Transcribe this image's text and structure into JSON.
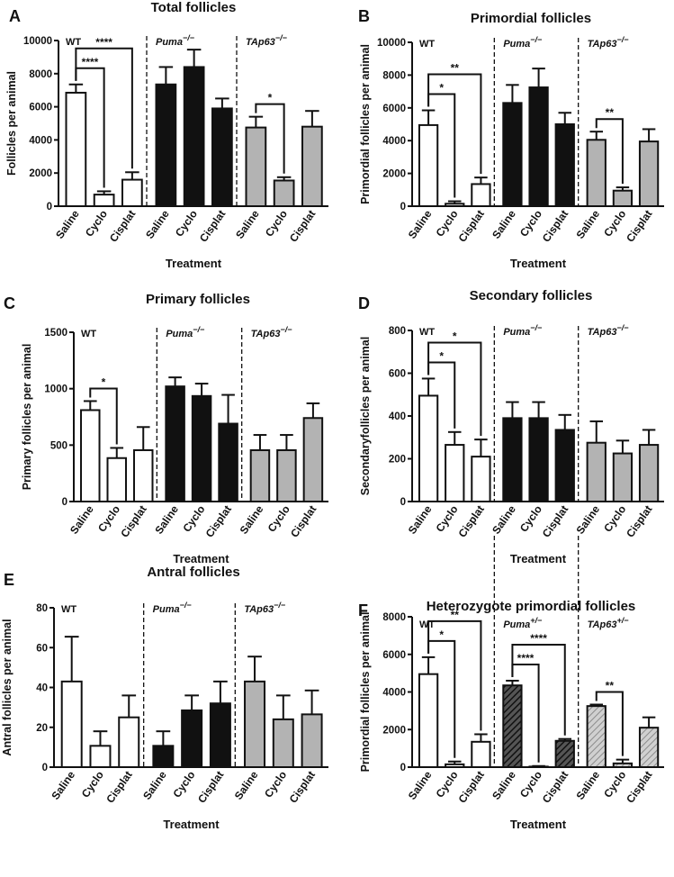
{
  "colors": {
    "white_fill": "#ffffff",
    "black_fill": "#111111",
    "grey_fill": "#b3b3b3",
    "hatch_fill": "hatched"
  },
  "chart_data": [
    {
      "panel": "A",
      "type": "bar",
      "title": "Total follicles",
      "xlabel": "Treatment",
      "ylabel": "Follicles per animal",
      "ylim": [
        0,
        10000
      ],
      "yticks": [
        "0",
        "2000",
        "4000",
        "6000",
        "8000",
        "10000"
      ],
      "groups": [
        {
          "genotype": "WT",
          "sup": "",
          "italic": false,
          "style": "white",
          "categories": [
            "Saline",
            "Cyclo",
            "Cisplat"
          ],
          "values": [
            6850,
            700,
            1600
          ],
          "errors": [
            500,
            200,
            450
          ]
        },
        {
          "genotype": "Puma",
          "sup": "−/−",
          "italic": true,
          "style": "black",
          "categories": [
            "Saline",
            "Cyclo",
            "Cisplat"
          ],
          "values": [
            7350,
            8400,
            5900
          ],
          "errors": [
            1050,
            1050,
            600
          ]
        },
        {
          "genotype": "TAp63",
          "sup": "−/−",
          "italic": true,
          "style": "grey",
          "categories": [
            "Saline",
            "Cyclo",
            "Cisplat"
          ],
          "values": [
            4750,
            1550,
            4800
          ],
          "errors": [
            650,
            200,
            950
          ]
        }
      ],
      "significance": [
        {
          "group": 0,
          "from": 0,
          "to": 1,
          "label": "****"
        },
        {
          "group": 0,
          "from": 0,
          "to": 2,
          "label": "****"
        },
        {
          "group": 2,
          "from": 0,
          "to": 1,
          "label": "*"
        }
      ]
    },
    {
      "panel": "B",
      "type": "bar",
      "title": "Primordial follicles",
      "xlabel": "Treatment",
      "ylabel": "Primordial follicles per animal",
      "ylim": [
        0,
        10000
      ],
      "yticks": [
        "0",
        "2000",
        "4000",
        "6000",
        "8000",
        "10000"
      ],
      "groups": [
        {
          "genotype": "WT",
          "sup": "",
          "italic": false,
          "style": "white",
          "categories": [
            "Saline",
            "Cyclo",
            "Cisplat"
          ],
          "values": [
            4950,
            150,
            1350
          ],
          "errors": [
            900,
            150,
            400
          ]
        },
        {
          "genotype": "Puma",
          "sup": "−/−",
          "italic": true,
          "style": "black",
          "categories": [
            "Saline",
            "Cyclo",
            "Cisplat"
          ],
          "values": [
            6300,
            7250,
            5000
          ],
          "errors": [
            1100,
            1150,
            700
          ]
        },
        {
          "genotype": "TAp63",
          "sup": "−/−",
          "italic": true,
          "style": "grey",
          "categories": [
            "Saline",
            "Cyclo",
            "Cisplat"
          ],
          "values": [
            4050,
            950,
            3950
          ],
          "errors": [
            500,
            200,
            750
          ]
        }
      ],
      "significance": [
        {
          "group": 0,
          "from": 0,
          "to": 1,
          "label": "*"
        },
        {
          "group": 0,
          "from": 0,
          "to": 2,
          "label": "**"
        },
        {
          "group": 2,
          "from": 0,
          "to": 1,
          "label": "**"
        }
      ]
    },
    {
      "panel": "C",
      "type": "bar",
      "title": "Primary follicles",
      "xlabel": "Treatment",
      "ylabel": "Primary follicles per animal",
      "ylim": [
        0,
        1500
      ],
      "yticks": [
        "0",
        "500",
        "1000",
        "1500"
      ],
      "groups": [
        {
          "genotype": "WT",
          "sup": "",
          "italic": false,
          "style": "white",
          "categories": [
            "Saline",
            "Cyclo",
            "Cisplat"
          ],
          "values": [
            810,
            385,
            455
          ],
          "errors": [
            80,
            90,
            205
          ]
        },
        {
          "genotype": "Puma",
          "sup": "−/−",
          "italic": true,
          "style": "black",
          "categories": [
            "Saline",
            "Cyclo",
            "Cisplat"
          ],
          "values": [
            1020,
            935,
            690
          ],
          "errors": [
            80,
            110,
            255
          ]
        },
        {
          "genotype": "TAp63",
          "sup": "−/−",
          "italic": true,
          "style": "grey",
          "categories": [
            "Saline",
            "Cyclo",
            "Cisplat"
          ],
          "values": [
            455,
            455,
            740
          ],
          "errors": [
            135,
            135,
            130
          ]
        }
      ],
      "significance": [
        {
          "group": 0,
          "from": 0,
          "to": 1,
          "label": "*"
        }
      ]
    },
    {
      "panel": "D",
      "type": "bar",
      "title": "Secondary follicles",
      "xlabel": "Treatment",
      "ylabel": "Secondaryfollicles per animal",
      "ylim": [
        0,
        800
      ],
      "yticks": [
        "0",
        "200",
        "400",
        "600",
        "800"
      ],
      "groups": [
        {
          "genotype": "WT",
          "sup": "",
          "italic": false,
          "style": "white",
          "categories": [
            "Saline",
            "Cyclo",
            "Cisplat"
          ],
          "values": [
            495,
            265,
            210
          ],
          "errors": [
            80,
            60,
            80
          ]
        },
        {
          "genotype": "Puma",
          "sup": "−/−",
          "italic": true,
          "style": "black",
          "categories": [
            "Saline",
            "Cyclo",
            "Cisplat"
          ],
          "values": [
            390,
            390,
            335
          ],
          "errors": [
            75,
            75,
            70
          ]
        },
        {
          "genotype": "TAp63",
          "sup": "−/−",
          "italic": true,
          "style": "grey",
          "categories": [
            "Saline",
            "Cyclo",
            "Cisplat"
          ],
          "values": [
            275,
            225,
            265
          ],
          "errors": [
            100,
            60,
            70
          ]
        }
      ],
      "significance": [
        {
          "group": 0,
          "from": 0,
          "to": 1,
          "label": "*"
        },
        {
          "group": 0,
          "from": 0,
          "to": 2,
          "label": "*"
        }
      ]
    },
    {
      "panel": "E",
      "type": "bar",
      "title": "Antral follicles",
      "xlabel": "Treatment",
      "ylabel": "Antral follicles per animal",
      "ylim": [
        0,
        80
      ],
      "yticks": [
        "0",
        "20",
        "40",
        "60",
        "80"
      ],
      "groups": [
        {
          "genotype": "WT",
          "sup": "",
          "italic": false,
          "style": "white",
          "categories": [
            "Saline",
            "Cyclo",
            "Cisplat"
          ],
          "values": [
            43,
            10.7,
            25
          ],
          "errors": [
            22.5,
            7.3,
            11
          ]
        },
        {
          "genotype": "Puma",
          "sup": "−/−",
          "italic": true,
          "style": "black",
          "categories": [
            "Saline",
            "Cyclo",
            "Cisplat"
          ],
          "values": [
            10.7,
            28.5,
            32
          ],
          "errors": [
            7.3,
            7.5,
            11
          ]
        },
        {
          "genotype": "TAp63",
          "sup": "−/−",
          "italic": true,
          "style": "grey",
          "categories": [
            "Saline",
            "Cyclo",
            "Cisplat"
          ],
          "values": [
            43,
            24,
            26.5
          ],
          "errors": [
            12.5,
            12,
            12
          ]
        }
      ],
      "significance": []
    },
    {
      "panel": "F",
      "type": "bar",
      "title": "Heterozygote primordial follicles",
      "xlabel": "Treatment",
      "ylabel": "Primordial follicles per animal",
      "ylim": [
        0,
        8000
      ],
      "yticks": [
        "0",
        "2000",
        "4000",
        "6000",
        "8000"
      ],
      "groups": [
        {
          "genotype": "WT",
          "sup": "",
          "italic": false,
          "style": "white",
          "categories": [
            "Saline",
            "Cyclo",
            "Cisplat"
          ],
          "values": [
            4950,
            150,
            1350
          ],
          "errors": [
            900,
            150,
            400
          ]
        },
        {
          "genotype": "Puma",
          "sup": "+/−",
          "italic": true,
          "style": "hatch_dark",
          "categories": [
            "Saline",
            "Cyclo",
            "Cisplat"
          ],
          "values": [
            4350,
            30,
            1400
          ],
          "errors": [
            250,
            30,
            100
          ]
        },
        {
          "genotype": "TAp63",
          "sup": "+/−",
          "italic": true,
          "style": "hatch_light",
          "categories": [
            "Saline",
            "Cyclo",
            "Cisplat"
          ],
          "values": [
            3250,
            200,
            2100
          ],
          "errors": [
            80,
            200,
            550
          ]
        }
      ],
      "significance": [
        {
          "group": 0,
          "from": 0,
          "to": 1,
          "label": "*"
        },
        {
          "group": 0,
          "from": 0,
          "to": 2,
          "label": "**"
        },
        {
          "group": 1,
          "from": 0,
          "to": 1,
          "label": "****"
        },
        {
          "group": 1,
          "from": 0,
          "to": 2,
          "label": "****"
        },
        {
          "group": 2,
          "from": 0,
          "to": 1,
          "label": "**"
        }
      ]
    }
  ]
}
